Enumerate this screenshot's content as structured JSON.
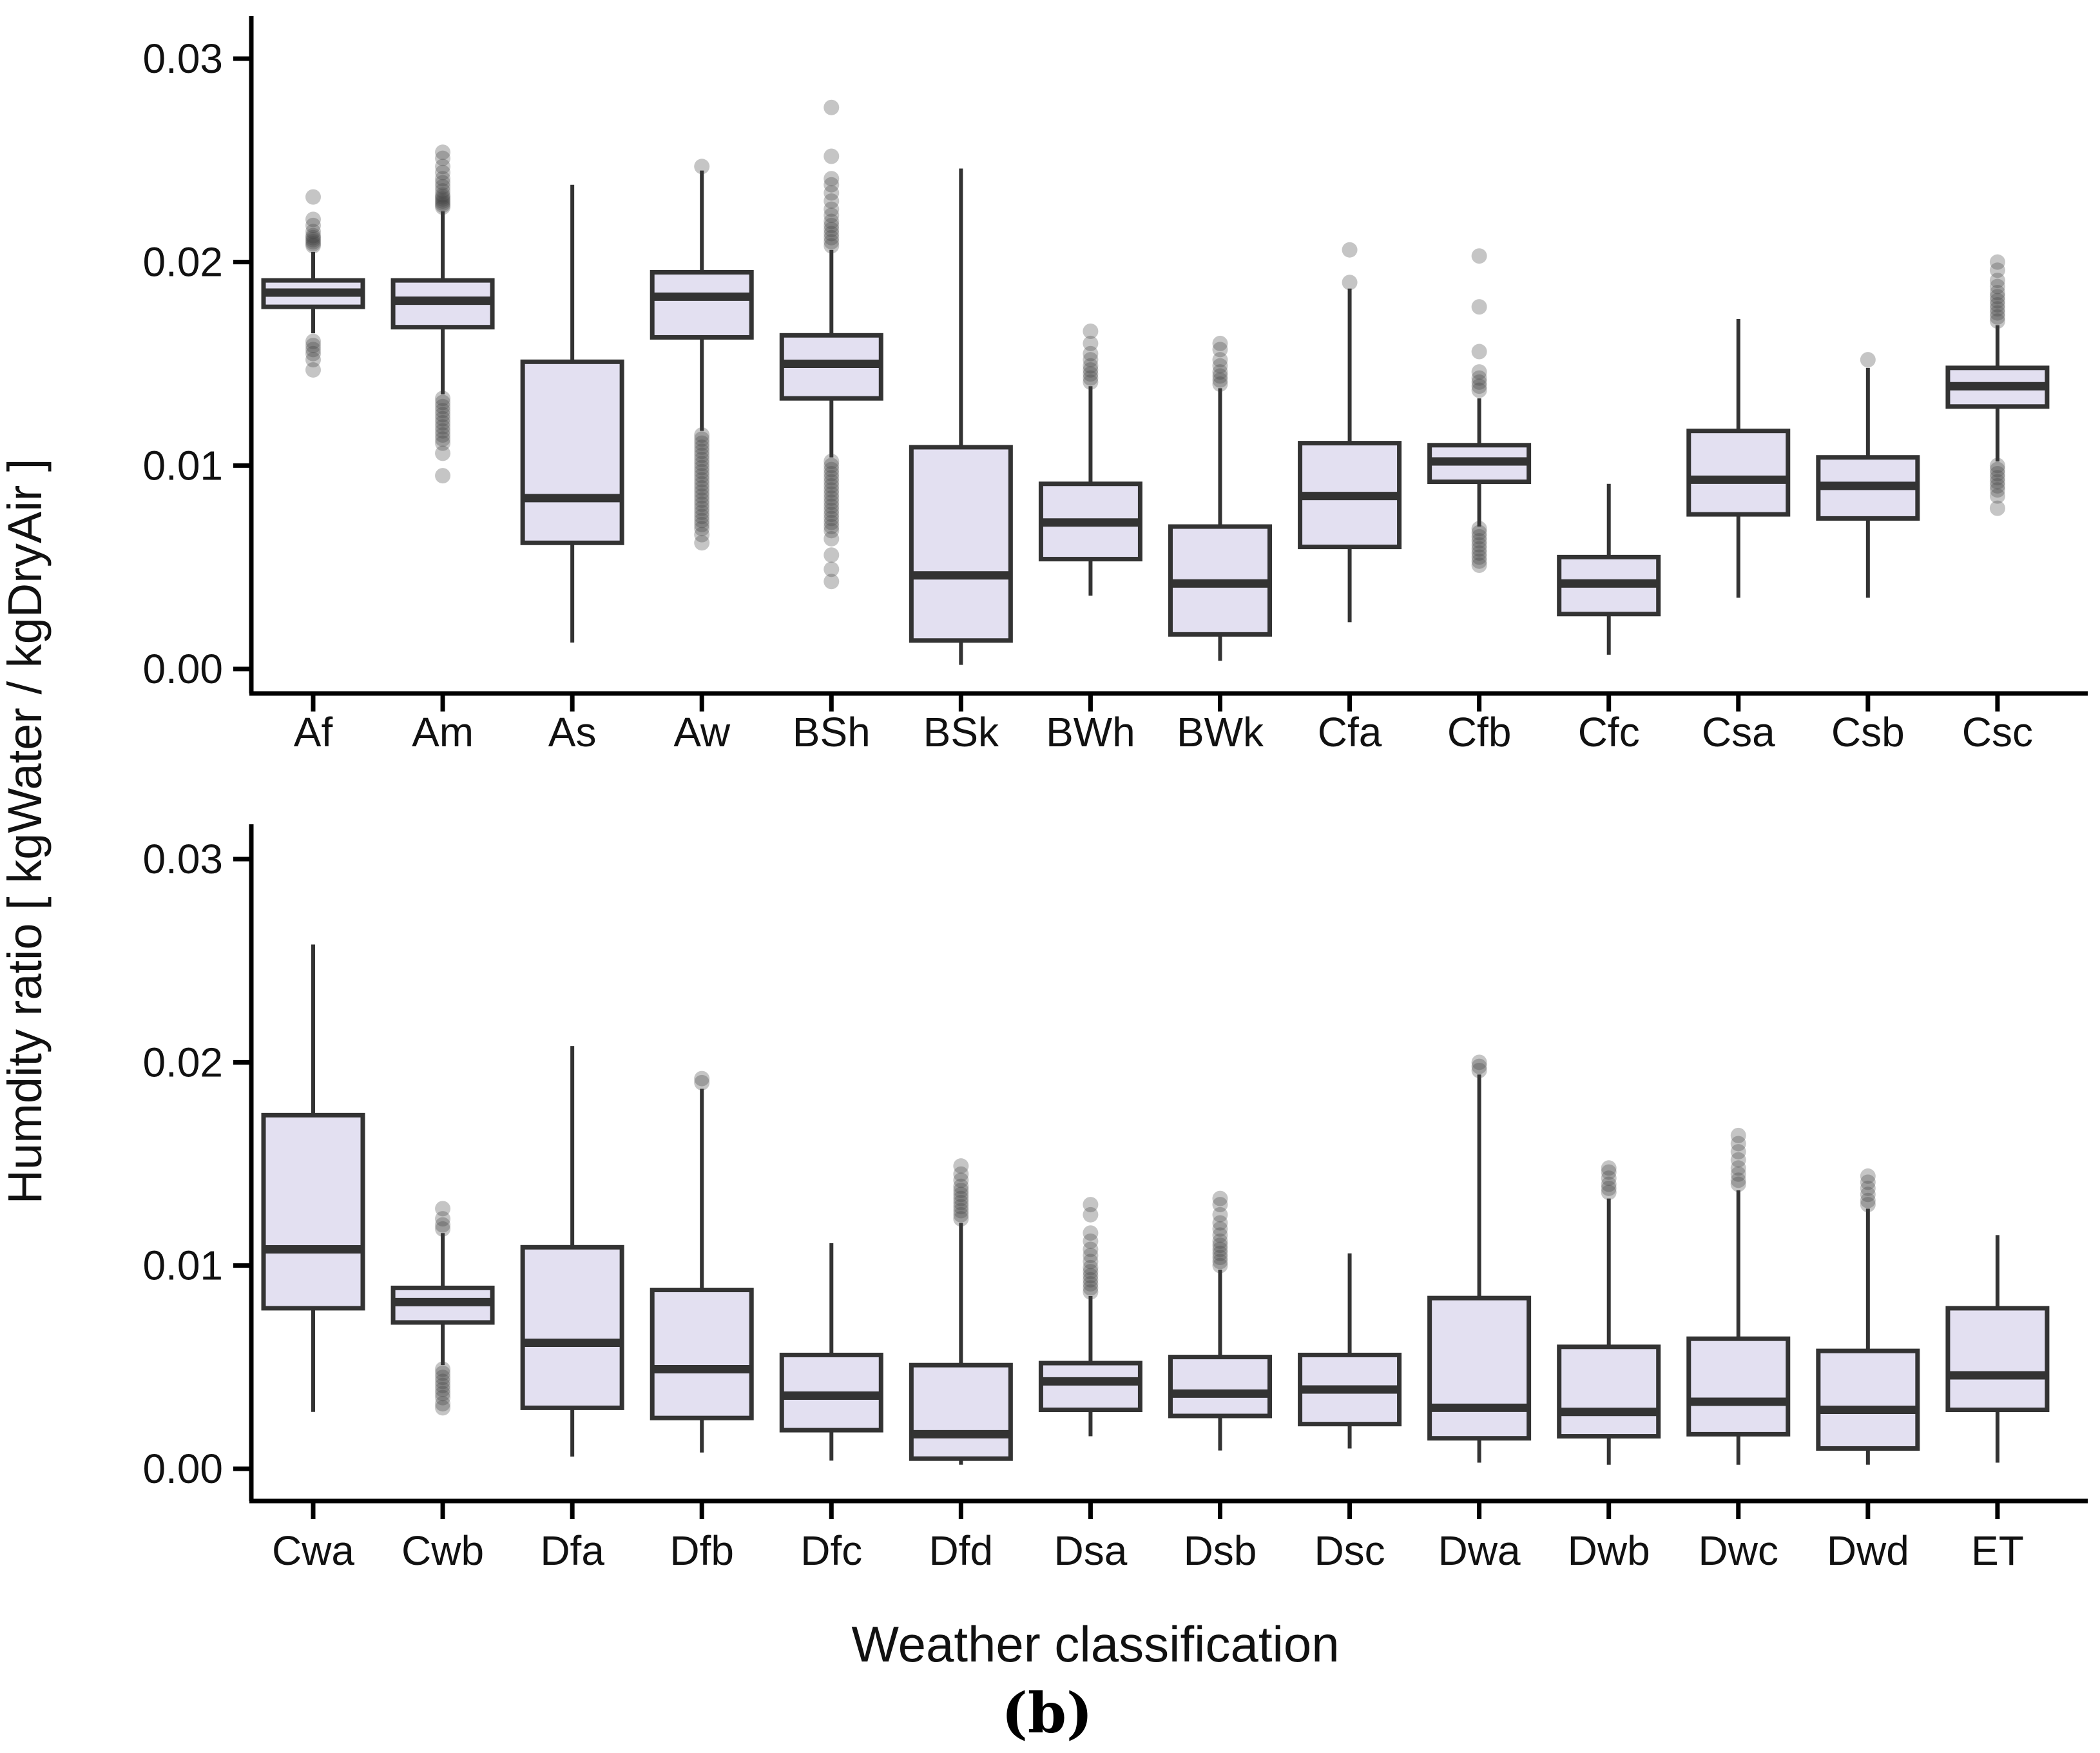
{
  "chart_data": {
    "type": "boxplot",
    "title": "",
    "xlabel": "Weather classification",
    "ylabel": "Humdity ratio [ kgWater / kgDryAir ]",
    "caption": "(b)",
    "ylim": [
      0,
      0.031
    ],
    "grid": false,
    "legend": "none",
    "yticks": [
      {
        "value": 0.0,
        "label": "0.00"
      },
      {
        "value": 0.01,
        "label": "0.01"
      },
      {
        "value": 0.02,
        "label": "0.02"
      },
      {
        "value": 0.03,
        "label": "0.03"
      }
    ],
    "colors": {
      "box_fill": "#E3E0F1",
      "box_stroke": "#333333",
      "median_stroke": "#333333",
      "whisker_stroke": "#333333",
      "outlier_fill": "#404040",
      "axis": "#000000",
      "text": "#111111"
    },
    "panels": [
      {
        "id": "top",
        "boxes": [
          {
            "label": "Af",
            "whisker_low": 0.0165,
            "q1": 0.0178,
            "median": 0.0185,
            "q3": 0.0191,
            "whisker_high": 0.0205,
            "outliers_high": [
              0.0208,
              0.0209,
              0.021,
              0.0211,
              0.0212,
              0.0213,
              0.0215,
              0.0218,
              0.0221,
              0.0232
            ],
            "outliers_low": [
              0.0161,
              0.0159,
              0.0157,
              0.0155,
              0.0152,
              0.0147
            ]
          },
          {
            "label": "Am",
            "whisker_low": 0.0135,
            "q1": 0.0168,
            "median": 0.0181,
            "q3": 0.0191,
            "whisker_high": 0.0225,
            "outliers_high": [
              0.0227,
              0.0228,
              0.0229,
              0.023,
              0.0231,
              0.0232,
              0.0233,
              0.0235,
              0.0237,
              0.0239,
              0.0241,
              0.0244,
              0.0247,
              0.0251,
              0.0254
            ],
            "outliers_low": [
              0.0133,
              0.0131,
              0.0129,
              0.0127,
              0.0125,
              0.0123,
              0.0121,
              0.0119,
              0.0117,
              0.0115,
              0.0113,
              0.0111,
              0.0106,
              0.0095
            ]
          },
          {
            "label": "As",
            "whisker_low": 0.0013,
            "q1": 0.0062,
            "median": 0.0084,
            "q3": 0.0151,
            "whisker_high": 0.0238,
            "outliers_high": [],
            "outliers_low": []
          },
          {
            "label": "Aw",
            "whisker_low": 0.0117,
            "q1": 0.0163,
            "median": 0.0183,
            "q3": 0.0195,
            "whisker_high": 0.0245,
            "outliers_high": [
              0.0247
            ],
            "outliers_low": [
              0.0115,
              0.0113,
              0.0111,
              0.0109,
              0.0107,
              0.0105,
              0.0103,
              0.0101,
              0.0099,
              0.0097,
              0.0095,
              0.0093,
              0.0091,
              0.0089,
              0.0087,
              0.0085,
              0.0083,
              0.0081,
              0.0079,
              0.0077,
              0.0075,
              0.0073,
              0.0071,
              0.0069,
              0.0066,
              0.0062
            ]
          },
          {
            "label": "BSh",
            "whisker_low": 0.0104,
            "q1": 0.0133,
            "median": 0.015,
            "q3": 0.0164,
            "whisker_high": 0.0206,
            "outliers_high": [
              0.0208,
              0.021,
              0.0212,
              0.0214,
              0.0216,
              0.0218,
              0.022,
              0.0223,
              0.0226,
              0.023,
              0.0234,
              0.0238,
              0.0241,
              0.0252,
              0.0276
            ],
            "outliers_low": [
              0.0102,
              0.01,
              0.0098,
              0.0096,
              0.0094,
              0.0092,
              0.009,
              0.0088,
              0.0086,
              0.0084,
              0.0082,
              0.008,
              0.0078,
              0.0076,
              0.0074,
              0.0072,
              0.007,
              0.0068,
              0.0064,
              0.0056,
              0.0049,
              0.0043
            ]
          },
          {
            "label": "BSk",
            "whisker_low": 0.0002,
            "q1": 0.0014,
            "median": 0.0046,
            "q3": 0.0109,
            "whisker_high": 0.0246,
            "outliers_high": [],
            "outliers_low": []
          },
          {
            "label": "BWh",
            "whisker_low": 0.0036,
            "q1": 0.0054,
            "median": 0.0072,
            "q3": 0.0091,
            "whisker_high": 0.0139,
            "outliers_high": [
              0.0141,
              0.0143,
              0.0145,
              0.0147,
              0.0149,
              0.0152,
              0.0155,
              0.016,
              0.0166
            ],
            "outliers_low": []
          },
          {
            "label": "BWk",
            "whisker_low": 0.0004,
            "q1": 0.0017,
            "median": 0.0042,
            "q3": 0.007,
            "whisker_high": 0.0138,
            "outliers_high": [
              0.014,
              0.0142,
              0.0144,
              0.0146,
              0.0149,
              0.0152,
              0.0157,
              0.016
            ],
            "outliers_low": []
          },
          {
            "label": "Cfa",
            "whisker_low": 0.0023,
            "q1": 0.006,
            "median": 0.0085,
            "q3": 0.0111,
            "whisker_high": 0.0187,
            "outliers_high": [
              0.019,
              0.0206
            ],
            "outliers_low": []
          },
          {
            "label": "Cfb",
            "whisker_low": 0.007,
            "q1": 0.0092,
            "median": 0.0102,
            "q3": 0.011,
            "whisker_high": 0.0133,
            "outliers_high": [
              0.0137,
              0.0139,
              0.0141,
              0.0143,
              0.0146,
              0.0156,
              0.0178,
              0.0203
            ],
            "outliers_low": [
              0.0069,
              0.0067,
              0.0065,
              0.0063,
              0.0061,
              0.0059,
              0.0057,
              0.0055,
              0.0053,
              0.0051
            ]
          },
          {
            "label": "Cfc",
            "whisker_low": 0.0007,
            "q1": 0.0027,
            "median": 0.0042,
            "q3": 0.0055,
            "whisker_high": 0.0091,
            "outliers_high": [],
            "outliers_low": []
          },
          {
            "label": "Csa",
            "whisker_low": 0.0035,
            "q1": 0.0076,
            "median": 0.0093,
            "q3": 0.0117,
            "whisker_high": 0.0172,
            "outliers_high": [],
            "outliers_low": []
          },
          {
            "label": "Csb",
            "whisker_low": 0.0035,
            "q1": 0.0074,
            "median": 0.009,
            "q3": 0.0104,
            "whisker_high": 0.0148,
            "outliers_high": [
              0.0152
            ],
            "outliers_low": []
          },
          {
            "label": "Csc",
            "whisker_low": 0.0102,
            "q1": 0.0129,
            "median": 0.0139,
            "q3": 0.0148,
            "whisker_high": 0.0169,
            "outliers_high": [
              0.0171,
              0.0173,
              0.0175,
              0.0177,
              0.0179,
              0.0181,
              0.0183,
              0.0185,
              0.0188,
              0.0191,
              0.0196,
              0.02
            ],
            "outliers_low": [
              0.01,
              0.0098,
              0.0096,
              0.0094,
              0.0092,
              0.009,
              0.0088,
              0.0085,
              0.0079
            ]
          }
        ]
      },
      {
        "id": "bottom",
        "boxes": [
          {
            "label": "Cwa",
            "whisker_low": 0.0028,
            "q1": 0.0079,
            "median": 0.0108,
            "q3": 0.0174,
            "whisker_high": 0.0258,
            "outliers_high": [],
            "outliers_low": []
          },
          {
            "label": "Cwb",
            "whisker_low": 0.0051,
            "q1": 0.0072,
            "median": 0.0082,
            "q3": 0.0089,
            "whisker_high": 0.0116,
            "outliers_high": [
              0.0118,
              0.012,
              0.0123,
              0.0128
            ],
            "outliers_low": [
              0.0049,
              0.0047,
              0.0045,
              0.0043,
              0.0041,
              0.0039,
              0.0037,
              0.0035,
              0.0032,
              0.003
            ]
          },
          {
            "label": "Dfa",
            "whisker_low": 0.0006,
            "q1": 0.003,
            "median": 0.0062,
            "q3": 0.0109,
            "whisker_high": 0.0208,
            "outliers_high": [],
            "outliers_low": []
          },
          {
            "label": "Dfb",
            "whisker_low": 0.0008,
            "q1": 0.0025,
            "median": 0.0049,
            "q3": 0.0088,
            "whisker_high": 0.0187,
            "outliers_high": [
              0.019,
              0.0192
            ],
            "outliers_low": []
          },
          {
            "label": "Dfc",
            "whisker_low": 0.0004,
            "q1": 0.0019,
            "median": 0.0036,
            "q3": 0.0056,
            "whisker_high": 0.0111,
            "outliers_high": [],
            "outliers_low": []
          },
          {
            "label": "Dfd",
            "whisker_low": 0.0002,
            "q1": 0.0005,
            "median": 0.0017,
            "q3": 0.0051,
            "whisker_high": 0.0121,
            "outliers_high": [
              0.0123,
              0.0125,
              0.0127,
              0.0129,
              0.0131,
              0.0133,
              0.0135,
              0.0137,
              0.0139,
              0.0142,
              0.0145,
              0.0149
            ],
            "outliers_low": []
          },
          {
            "label": "Dsa",
            "whisker_low": 0.0016,
            "q1": 0.0029,
            "median": 0.0043,
            "q3": 0.0052,
            "whisker_high": 0.0085,
            "outliers_high": [
              0.0087,
              0.0089,
              0.0091,
              0.0093,
              0.0095,
              0.0097,
              0.0099,
              0.0102,
              0.0105,
              0.0108,
              0.0112,
              0.0116,
              0.0125,
              0.013
            ],
            "outliers_low": []
          },
          {
            "label": "Dsb",
            "whisker_low": 0.0009,
            "q1": 0.0026,
            "median": 0.0037,
            "q3": 0.0055,
            "whisker_high": 0.0098,
            "outliers_high": [
              0.01,
              0.0102,
              0.0104,
              0.0106,
              0.0108,
              0.011,
              0.0112,
              0.0115,
              0.0118,
              0.0121,
              0.0125,
              0.013,
              0.0133
            ],
            "outliers_low": []
          },
          {
            "label": "Dsc",
            "whisker_low": 0.001,
            "q1": 0.0022,
            "median": 0.0039,
            "q3": 0.0056,
            "whisker_high": 0.0106,
            "outliers_high": [],
            "outliers_low": []
          },
          {
            "label": "Dwa",
            "whisker_low": 0.0003,
            "q1": 0.0015,
            "median": 0.003,
            "q3": 0.0084,
            "whisker_high": 0.0194,
            "outliers_high": [
              0.0196,
              0.0198,
              0.02
            ],
            "outliers_low": []
          },
          {
            "label": "Dwb",
            "whisker_low": 0.0002,
            "q1": 0.0016,
            "median": 0.0028,
            "q3": 0.006,
            "whisker_high": 0.0133,
            "outliers_high": [
              0.0136,
              0.0138,
              0.014,
              0.0143,
              0.0146,
              0.0148
            ],
            "outliers_low": []
          },
          {
            "label": "Dwc",
            "whisker_low": 0.0002,
            "q1": 0.0017,
            "median": 0.0033,
            "q3": 0.0064,
            "whisker_high": 0.0137,
            "outliers_high": [
              0.014,
              0.0142,
              0.0145,
              0.0148,
              0.0152,
              0.0156,
              0.016,
              0.0164
            ],
            "outliers_low": []
          },
          {
            "label": "Dwd",
            "whisker_low": 0.0002,
            "q1": 0.001,
            "median": 0.0029,
            "q3": 0.0058,
            "whisker_high": 0.0128,
            "outliers_high": [
              0.013,
              0.0132,
              0.0135,
              0.0138,
              0.0141,
              0.0144
            ],
            "outliers_low": []
          },
          {
            "label": "ET",
            "whisker_low": 0.0003,
            "q1": 0.0029,
            "median": 0.0046,
            "q3": 0.0079,
            "whisker_high": 0.0115,
            "outliers_high": [],
            "outliers_low": []
          }
        ]
      }
    ]
  }
}
